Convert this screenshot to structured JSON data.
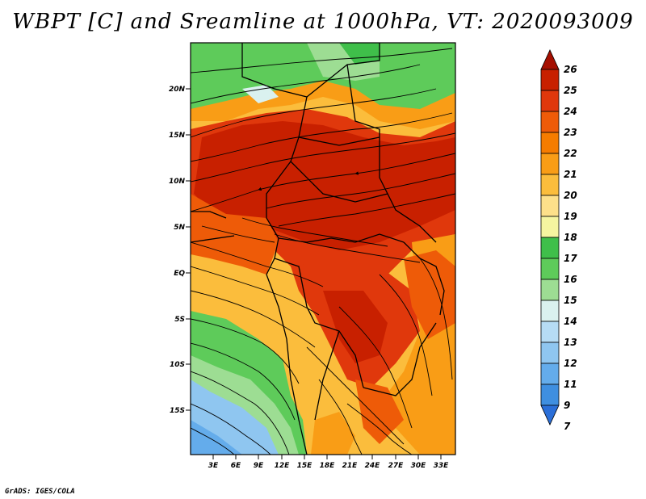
{
  "title": "WBPT [C] and Sreamline at 1000hPa, VT: 2020093009",
  "credit": "GrADS: IGES/COLA",
  "map": {
    "lat_labels": [
      "20N",
      "15N",
      "10N",
      "5N",
      "EQ",
      "5S",
      "10S",
      "15S"
    ],
    "lon_labels": [
      "3E",
      "6E",
      "9E",
      "12E",
      "15E",
      "18E",
      "21E",
      "24E",
      "27E",
      "30E",
      "33E"
    ]
  },
  "colorbar": {
    "levels": [
      "26",
      "25",
      "24",
      "23",
      "22",
      "21",
      "20",
      "19",
      "18",
      "17",
      "16",
      "15",
      "14",
      "13",
      "12",
      "11",
      "9",
      "7"
    ],
    "colors": [
      "#a50f00",
      "#c82000",
      "#e0380c",
      "#ee5b08",
      "#f57c00",
      "#f99d16",
      "#fbbd3c",
      "#fde08a",
      "#f5f5a0",
      "#3fbf4a",
      "#5ecb5a",
      "#9ddd93",
      "#daf1ef",
      "#b6dcf5",
      "#8fc6f0",
      "#64aceb",
      "#3f8fe0",
      "#2b6fd8"
    ]
  }
}
